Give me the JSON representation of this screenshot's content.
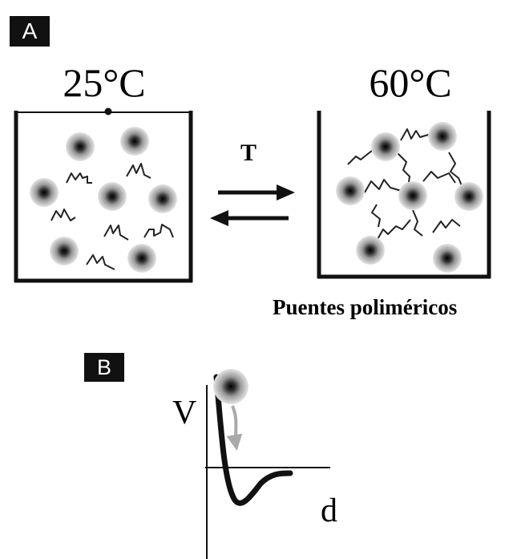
{
  "panel_a": {
    "label": "A",
    "temp_left": "25°C",
    "temp_right": "60°C",
    "arrow_label": "T",
    "caption": "Puentes poliméricos"
  },
  "panel_b": {
    "label": "B",
    "y_axis": "V",
    "x_axis": "d"
  }
}
